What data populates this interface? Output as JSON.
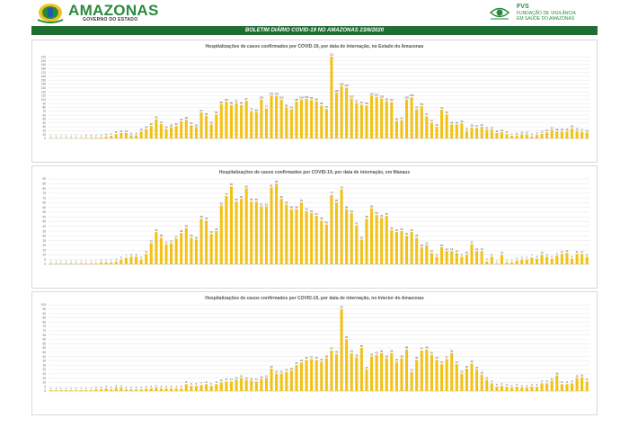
{
  "header": {
    "brand_name": "AMAZONAS",
    "brand_sub": "GOVERNO DO ESTADO",
    "fvs_abbr": "FVS",
    "fvs_name_line1": "FUNDAÇÃO DE VIGILÂNCIA",
    "fvs_name_line2": "EM SAÚDE DO AMAZONAS",
    "banner": "BOLETIM DIÁRIO COVID-19 NO AMAZONAS 23/6/2020",
    "colors": {
      "brand_green": "#2a8a3c",
      "banner_green": "#1f6f33",
      "bar_yellow": "#f2c21a"
    }
  },
  "chart_data": [
    {
      "type": "bar",
      "title": "Hospitalizações de casos confirmados por COVID-19, por data de internação, no Estado do Amazonas",
      "ylim": [
        0,
        220
      ],
      "yticks": [
        0,
        10,
        20,
        30,
        40,
        50,
        60,
        70,
        80,
        90,
        100,
        110,
        120,
        130,
        140,
        150,
        160,
        170,
        180,
        190,
        200,
        210
      ],
      "grid": true,
      "values": [
        1,
        1,
        1,
        1,
        1,
        1,
        1,
        2,
        2,
        2,
        3,
        5,
        7,
        11,
        14,
        14,
        8,
        8,
        18,
        24,
        32,
        49,
        37,
        24,
        29,
        32,
        44,
        48,
        34,
        29,
        67,
        58,
        36,
        62,
        88,
        95,
        86,
        91,
        86,
        97,
        70,
        68,
        100,
        77,
        111,
        109,
        100,
        80,
        75,
        95,
        100,
        102,
        99,
        96,
        85,
        76,
        211,
        118,
        135,
        131,
        103,
        91,
        87,
        85,
        110,
        107,
        103,
        96,
        94,
        45,
        47,
        100,
        106,
        75,
        83,
        57,
        41,
        30,
        74,
        62,
        36,
        36,
        39,
        19,
        28,
        27,
        30,
        22,
        22,
        14,
        16,
        11,
        7,
        8,
        10,
        10,
        5,
        9,
        12,
        16,
        22,
        18,
        18,
        18,
        26,
        19,
        17,
        15
      ]
    },
    {
      "type": "bar",
      "title": "Hospitalizações de casos confirmados por COVID-19, por data de internação, em Manaus",
      "ylim": [
        0,
        90
      ],
      "yticks": [
        0,
        5,
        10,
        15,
        20,
        25,
        30,
        35,
        40,
        45,
        50,
        55,
        60,
        65,
        70,
        75,
        80,
        85,
        90
      ],
      "grid": true,
      "values": [
        1,
        1,
        1,
        1,
        1,
        1,
        1,
        1,
        1,
        1,
        2,
        2,
        2,
        3,
        5,
        7,
        8,
        8,
        5,
        11,
        22,
        34,
        28,
        21,
        22,
        27,
        33,
        38,
        28,
        26,
        48,
        46,
        32,
        35,
        62,
        72,
        82,
        66,
        69,
        80,
        66,
        66,
        61,
        61,
        81,
        85,
        69,
        63,
        58,
        58,
        65,
        56,
        54,
        51,
        46,
        42,
        73,
        65,
        79,
        58,
        54,
        41,
        26,
        48,
        59,
        52,
        49,
        51,
        36,
        34,
        35,
        30,
        34,
        28,
        18,
        20,
        12,
        8,
        18,
        14,
        14,
        12,
        8,
        10,
        21,
        14,
        14,
        3,
        8,
        1,
        10,
        2,
        2,
        4,
        5,
        5,
        7,
        6,
        10,
        8,
        6,
        9,
        11,
        12,
        6,
        11,
        11,
        8
      ]
    },
    {
      "type": "bar",
      "title": "Hospitalizações  de casos confirmados por COVID-19, por data de internação, no Interior do Amazonas",
      "ylim": [
        0,
        100
      ],
      "yticks": [
        0,
        5,
        10,
        15,
        20,
        25,
        30,
        35,
        40,
        45,
        50,
        55,
        60,
        65,
        70,
        75,
        80,
        85,
        90,
        95,
        100
      ],
      "grid": true,
      "values": [
        1,
        1,
        1,
        1,
        1,
        1,
        1,
        1,
        1,
        2,
        2,
        3,
        2,
        4,
        4,
        2,
        2,
        2,
        2,
        3,
        3,
        4,
        3,
        3,
        3,
        3,
        3,
        8,
        6,
        6,
        7,
        8,
        6,
        8,
        10,
        11,
        11,
        13,
        15,
        13,
        12,
        11,
        14,
        15,
        26,
        20,
        20,
        22,
        24,
        30,
        33,
        36,
        37,
        36,
        34,
        38,
        47,
        43,
        95,
        60,
        44,
        39,
        50,
        25,
        40,
        42,
        44,
        38,
        44,
        34,
        38,
        48,
        22,
        36,
        47,
        48,
        42,
        36,
        31,
        37,
        44,
        31,
        20,
        26,
        32,
        25,
        19,
        13,
        9,
        5,
        6,
        5,
        4,
        5,
        4,
        4,
        5,
        5,
        9,
        9,
        12,
        18,
        8,
        8,
        9,
        15,
        16,
        11
      ]
    }
  ]
}
